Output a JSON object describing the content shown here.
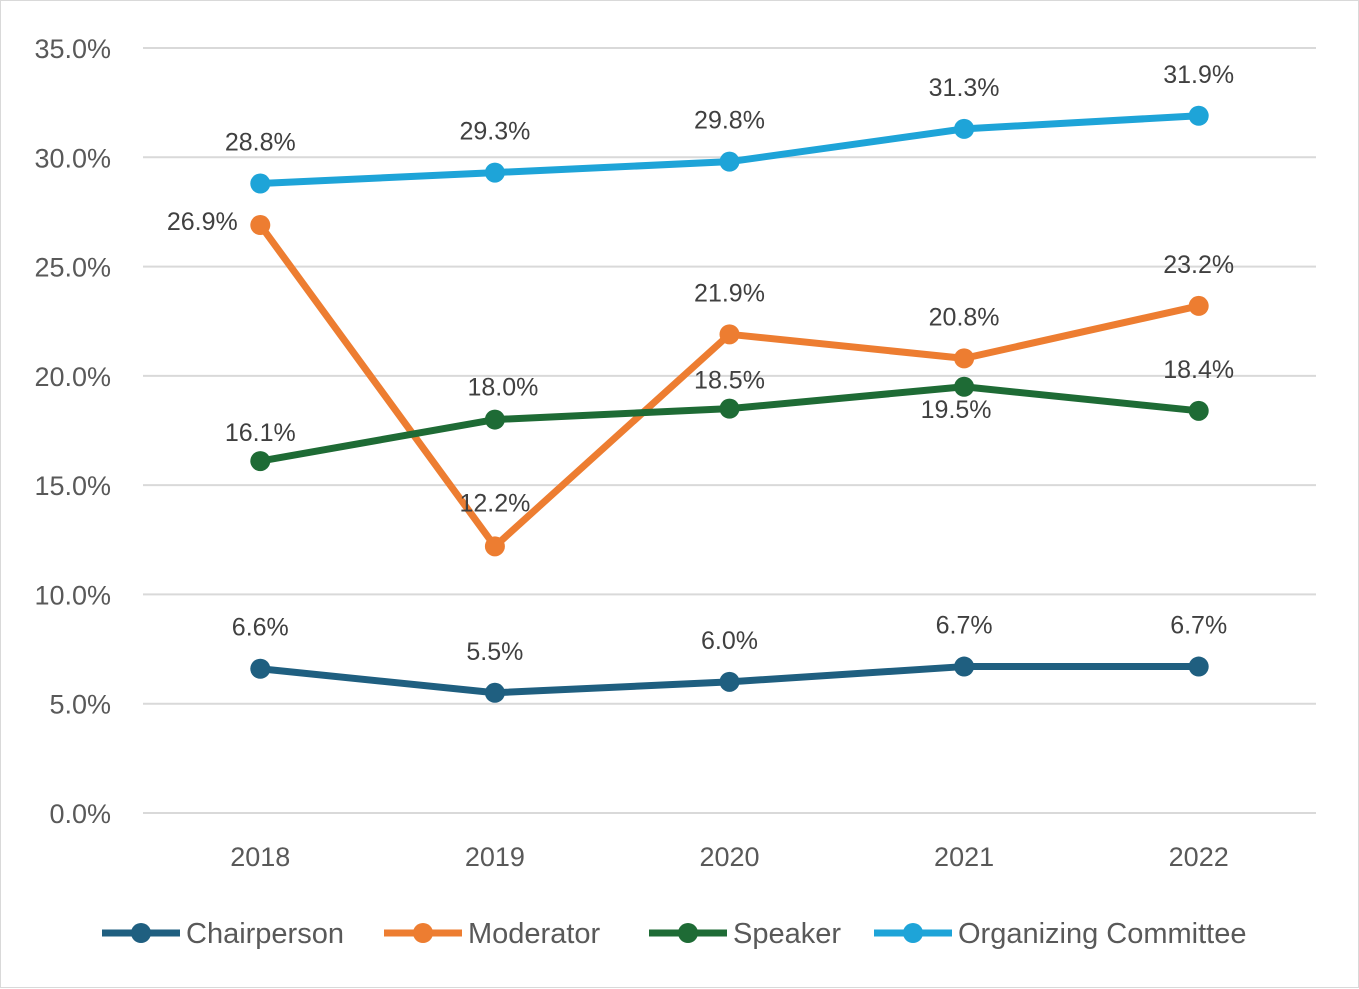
{
  "chart_data": {
    "type": "line",
    "categories": [
      "2018",
      "2019",
      "2020",
      "2021",
      "2022"
    ],
    "ylim": [
      0,
      35
    ],
    "ytick_values": [
      0,
      5,
      10,
      15,
      20,
      25,
      30,
      35
    ],
    "ytick_labels": [
      "0.0%",
      "5.0%",
      "10.0%",
      "15.0%",
      "20.0%",
      "25.0%",
      "30.0%",
      "35.0%"
    ],
    "grid": true,
    "legend_position": "bottom",
    "series": [
      {
        "name": "Chairperson",
        "color": "#1f5f80",
        "values": [
          6.6,
          5.5,
          6.0,
          6.7,
          6.7
        ],
        "labels": [
          "6.6%",
          "5.5%",
          "6.0%",
          "6.7%",
          "6.7%"
        ]
      },
      {
        "name": "Moderator",
        "color": "#ed7d31",
        "values": [
          26.9,
          12.2,
          21.9,
          20.8,
          23.2
        ],
        "labels": [
          "26.9%",
          "12.2%",
          "21.9%",
          "20.8%",
          "23.2%"
        ]
      },
      {
        "name": "Speaker",
        "color": "#1e6b35",
        "values": [
          16.1,
          18.0,
          18.5,
          19.5,
          18.4
        ],
        "labels": [
          "16.1%",
          "18.0%",
          "18.5%",
          "19.5%",
          "18.4%"
        ]
      },
      {
        "name": "Organizing Committee",
        "color": "#1ea4d8",
        "values": [
          28.8,
          29.3,
          29.8,
          31.3,
          31.9
        ],
        "labels": [
          "28.8%",
          "29.3%",
          "29.8%",
          "31.3%",
          "31.9%"
        ]
      }
    ]
  }
}
